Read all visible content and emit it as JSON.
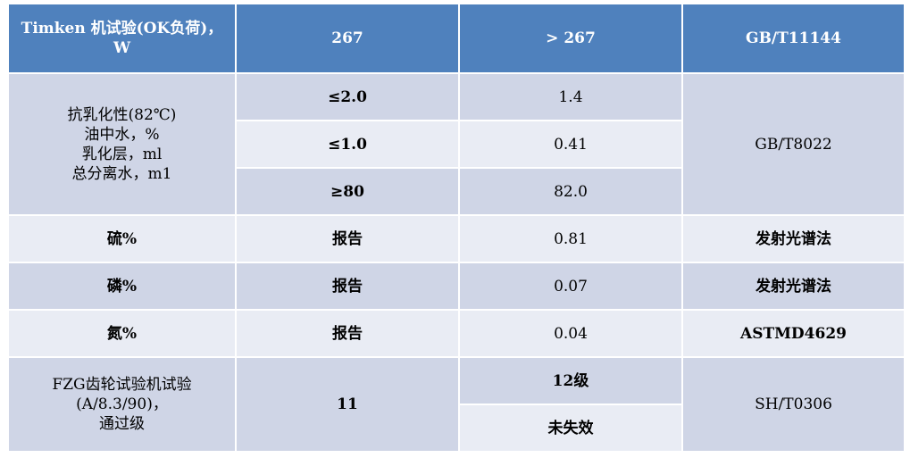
{
  "header": {
    "item": "Timken 机试验(OK负荷)，W",
    "spec": "267",
    "result": "> 267",
    "method": "GB/T11144"
  },
  "demulsibility": {
    "item_lines": [
      "抗乳化性(82℃)",
      "油中水，%",
      "乳化层，ml",
      "总分离水，m1"
    ],
    "rows": [
      {
        "spec": "≤2.0",
        "result": "1.4"
      },
      {
        "spec": "≤1.0",
        "result": "0.41"
      },
      {
        "spec": "≥80",
        "result": "82.0"
      }
    ],
    "method": "GB/T8022"
  },
  "sulfur": {
    "item": "硫%",
    "spec": "报告",
    "result": "0.81",
    "method": "发射光谱法"
  },
  "phosphorus": {
    "item": "磷%",
    "spec": "报告",
    "result": "0.07",
    "method": "发射光谱法"
  },
  "nitrogen": {
    "item": "氮%",
    "spec": "报告",
    "result": "0.04",
    "method": "ASTMD4629"
  },
  "fzg": {
    "item_lines": [
      "FZG齿轮试验机试验",
      "(A/8.3/90)，",
      "通过级"
    ],
    "spec": "11",
    "results": [
      "12级",
      "未失效"
    ],
    "method": "SH/T0306"
  },
  "colors": {
    "header_bg": "#4f81bd",
    "row_dark": "#cfd5e6",
    "row_light": "#e9ecf4"
  }
}
